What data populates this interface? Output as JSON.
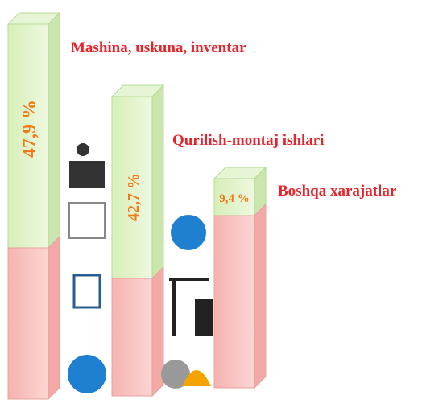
{
  "items": [
    {
      "label": "Mashina, uskuna, inventar",
      "value": "47,9 %"
    },
    {
      "label": "Qurilish-montaj ishlari",
      "value": "42,7 %"
    },
    {
      "label": "Boshqa xarajatlar",
      "value": "9,4 %"
    }
  ]
}
